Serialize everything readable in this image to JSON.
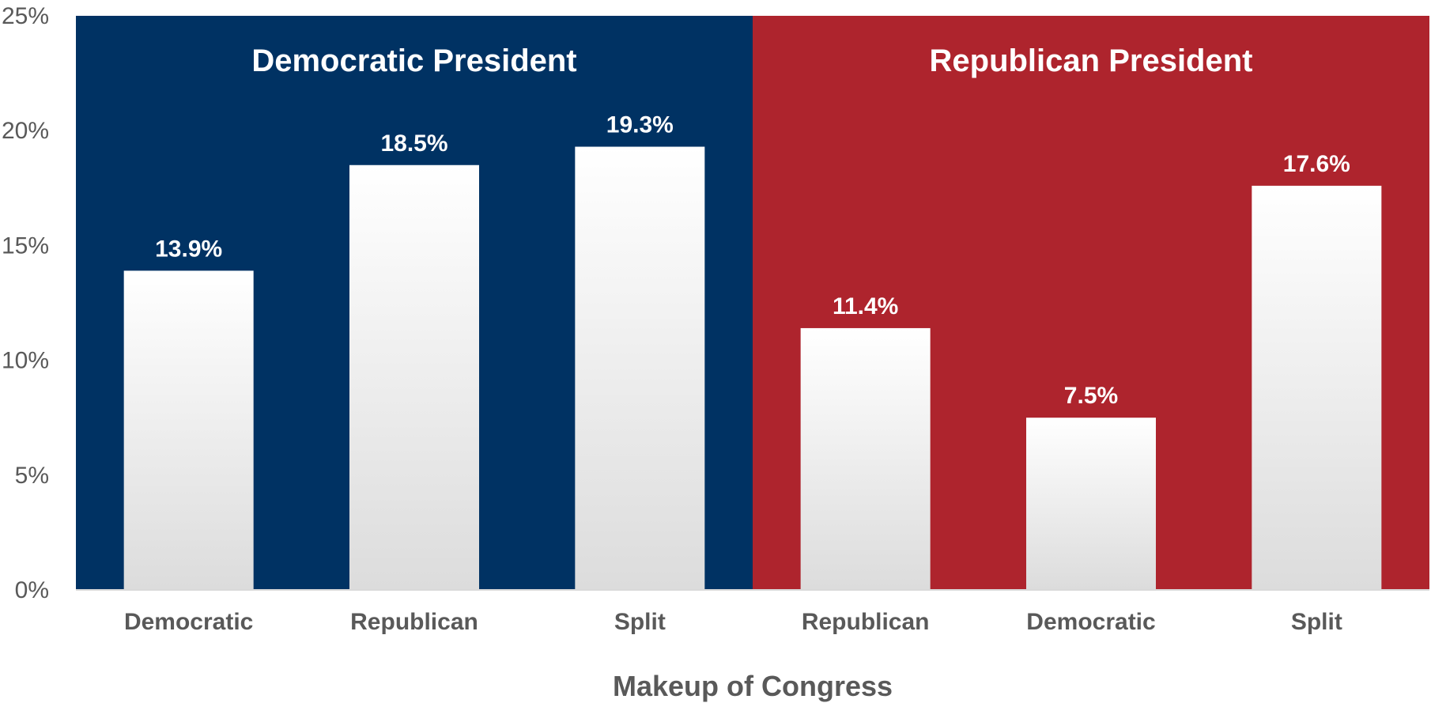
{
  "chart_data": {
    "type": "bar",
    "xlabel": "Makeup of Congress",
    "ylabel": "",
    "ylim": [
      0,
      25
    ],
    "yticks": [
      "0%",
      "5%",
      "10%",
      "15%",
      "20%",
      "25%"
    ],
    "grid": false,
    "groups": [
      {
        "name": "Democratic President",
        "color": "#003263",
        "categories": [
          "Democratic",
          "Republican",
          "Split"
        ],
        "values": [
          13.9,
          18.5,
          19.3
        ],
        "labels": [
          "13.9%",
          "18.5%",
          "19.3%"
        ]
      },
      {
        "name": "Republican President",
        "color": "#ae242d",
        "categories": [
          "Republican",
          "Democratic",
          "Split"
        ],
        "values": [
          11.4,
          7.5,
          17.6
        ],
        "labels": [
          "11.4%",
          "7.5%",
          "17.6%"
        ]
      }
    ],
    "bar_color": "#ffffff"
  }
}
